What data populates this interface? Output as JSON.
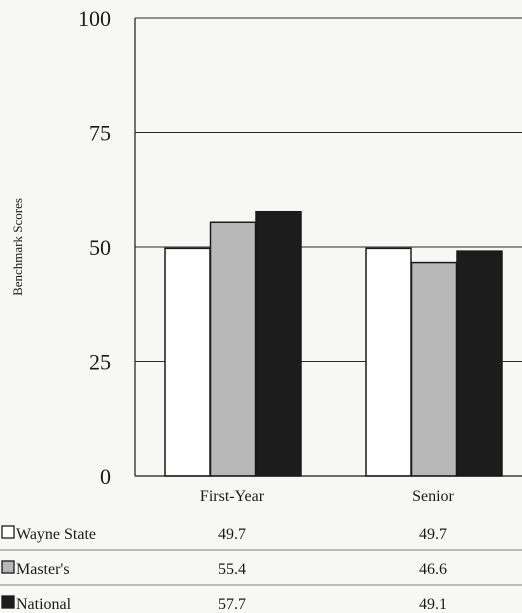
{
  "chart_data": {
    "type": "bar",
    "ylabel": "Benchmark Scores",
    "ylim": [
      0,
      100
    ],
    "yticks": [
      0,
      25,
      50,
      75,
      100
    ],
    "grid": true,
    "categories": [
      "First-Year",
      "Senior"
    ],
    "series": [
      {
        "name": "Wayne State",
        "values": [
          49.7,
          49.7
        ],
        "value_labels": [
          "49.7",
          "49.7"
        ],
        "color": "#ffffff",
        "swatch_style": "outline"
      },
      {
        "name": "Master's",
        "values": [
          55.4,
          46.6
        ],
        "value_labels": [
          "55.4",
          "46.6"
        ],
        "color": "#b8b8b8",
        "swatch_style": "filled"
      },
      {
        "name": "National",
        "values": [
          57.7,
          49.1
        ],
        "value_labels": [
          "57.7",
          "49.1"
        ],
        "color": "#1c1c1c",
        "swatch_style": "filled"
      }
    ],
    "legend": "table-below"
  }
}
